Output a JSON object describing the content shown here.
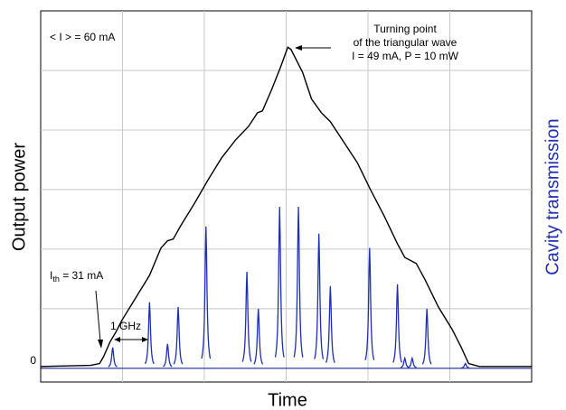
{
  "chart_data": {
    "type": "line",
    "x_label": "Time",
    "y_label": "Output power",
    "y2_label": "Cavity transmission",
    "xlim": [
      0,
      6
    ],
    "ylim": [
      -0.23,
      6
    ],
    "xgrid": [
      1,
      2,
      3,
      4,
      5
    ],
    "ygrid": [
      0,
      1,
      2,
      3,
      4,
      5
    ],
    "yticks": [
      0
    ],
    "grid": true,
    "series": [
      {
        "color": "#000000",
        "style": "line",
        "x": [
          0,
          0.61,
          0.72,
          0.77,
          0.85,
          0.92,
          0.99,
          1.16,
          1.33,
          1.47,
          1.55,
          1.62,
          1.71,
          1.88,
          2.04,
          2.21,
          2.38,
          2.54,
          2.65,
          2.71,
          2.82,
          2.93,
          3.02,
          3.06,
          3.2,
          3.31,
          3.43,
          3.54,
          3.65,
          3.87,
          4.03,
          4.2,
          4.36,
          4.45,
          4.59,
          4.7,
          4.86,
          5.03,
          5.14,
          5.23,
          5.36,
          6
        ],
        "values": [
          0.03,
          0.05,
          0.08,
          0.2,
          0.45,
          0.61,
          0.8,
          1.18,
          1.56,
          2.02,
          2.14,
          2.17,
          2.39,
          2.77,
          3.15,
          3.53,
          3.83,
          4.06,
          4.29,
          4.32,
          4.67,
          5.05,
          5.39,
          5.35,
          4.97,
          4.52,
          4.29,
          4.14,
          3.91,
          3.45,
          3,
          2.55,
          2.09,
          1.86,
          1.76,
          1.48,
          1.03,
          0.65,
          0.35,
          0.08,
          0.03,
          0.03
        ]
      },
      {
        "color": "#1f2fb0",
        "style": "peaks",
        "axis": "y2",
        "x": [
          0.88,
          1.33,
          1.55,
          1.68,
          2.02,
          2.52,
          2.66,
          2.92,
          3.15,
          3.4,
          3.54,
          4.02,
          4.36,
          4.45,
          4.54,
          4.72,
          5.19
        ],
        "values": [
          0.35,
          1.11,
          0.41,
          1.03,
          2.38,
          1.62,
          1.0,
          2.71,
          2.71,
          2.26,
          1.38,
          2.02,
          1.41,
          0.17,
          0.17,
          1.0,
          0.08
        ]
      }
    ],
    "annotations": {
      "mean_current": "< I > = 60 mA",
      "turning_1": "Turning point",
      "turning_2": "of the triangular wave",
      "turning_3": "I = 49 mA, P = 10 mW",
      "threshold_main": "I",
      "threshold_sub": "th",
      "threshold_rest": " = 31 mA",
      "spacing": "1 GHz"
    }
  }
}
